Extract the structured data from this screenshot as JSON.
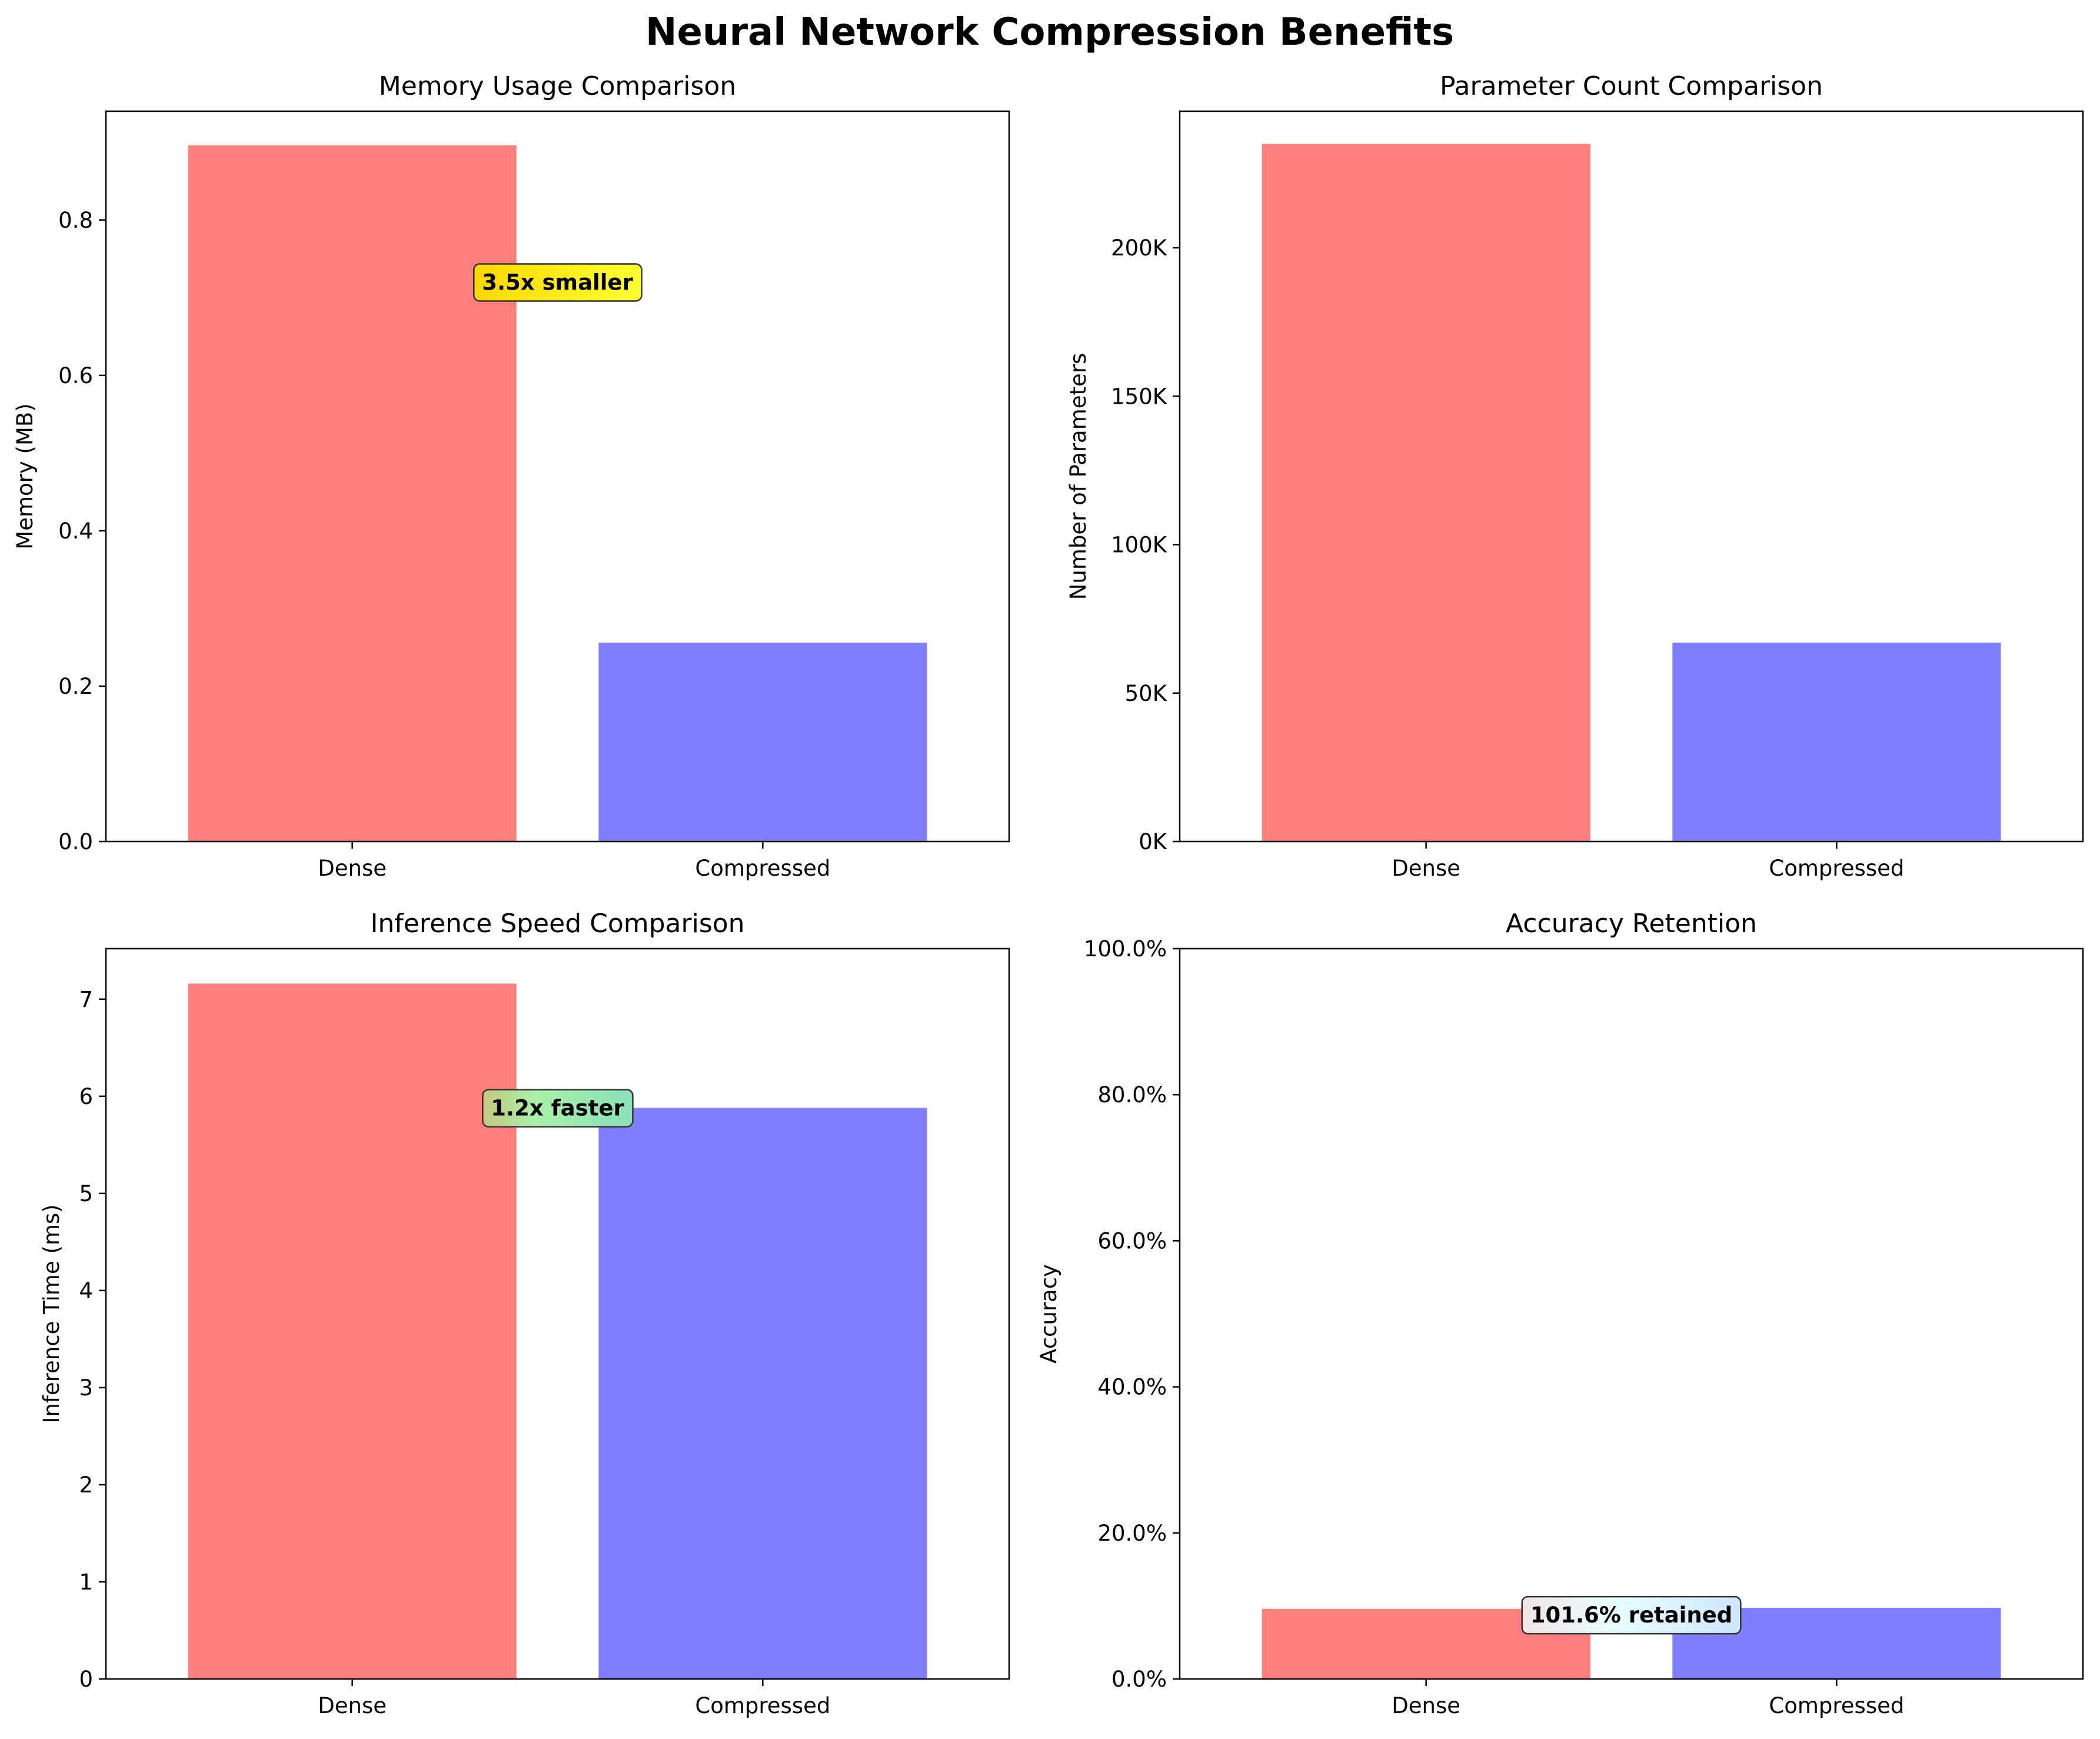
{
  "figure": {
    "title": "Neural Network Compression Benefits",
    "bar_colors": [
      "#ff7f7f",
      "#7f7fff"
    ]
  },
  "chart_data": [
    {
      "type": "bar",
      "title": "Memory Usage Comparison",
      "xlabel": "",
      "ylabel": "Memory (MB)",
      "categories": [
        "Dense",
        "Compressed"
      ],
      "values": [
        0.896,
        0.256
      ],
      "ylim": [
        0,
        0.94
      ],
      "yticks": [
        0.0,
        0.2,
        0.4,
        0.6,
        0.8
      ],
      "ytick_labels": [
        "0.0",
        "0.2",
        "0.4",
        "0.6",
        "0.8"
      ],
      "annotation": {
        "text": "3.5x smaller",
        "x": 0.5,
        "y": 0.72,
        "color": "#ffd700"
      },
      "grid": false
    },
    {
      "type": "bar",
      "title": "Parameter Count Comparison",
      "xlabel": "",
      "ylabel": "Number of Parameters",
      "categories": [
        "Dense",
        "Compressed"
      ],
      "values": [
        235000,
        67000
      ],
      "ylim": [
        0,
        246000
      ],
      "yticks": [
        0,
        50000,
        100000,
        150000,
        200000
      ],
      "ytick_labels": [
        "0K",
        "50K",
        "100K",
        "150K",
        "200K"
      ],
      "grid": false
    },
    {
      "type": "bar",
      "title": "Inference Speed Comparison",
      "xlabel": "",
      "ylabel": "Inference Time (ms)",
      "categories": [
        "Dense",
        "Compressed"
      ],
      "values": [
        7.16,
        5.88
      ],
      "ylim": [
        0,
        7.52
      ],
      "yticks": [
        0,
        1,
        2,
        3,
        4,
        5,
        6,
        7
      ],
      "ytick_labels": [
        "0",
        "1",
        "2",
        "3",
        "4",
        "5",
        "6",
        "7"
      ],
      "annotation": {
        "text": "1.2x faster",
        "x": 0.5,
        "y": 5.88,
        "color": "#90ee90"
      },
      "grid": false
    },
    {
      "type": "bar",
      "title": "Accuracy Retention",
      "xlabel": "",
      "ylabel": "Accuracy",
      "categories": [
        "Dense",
        "Compressed"
      ],
      "values": [
        0.096,
        0.0975
      ],
      "ylim": [
        0,
        1.0
      ],
      "yticks": [
        0,
        0.2,
        0.4,
        0.6,
        0.8,
        1.0
      ],
      "ytick_labels": [
        "0.0%",
        "20.0%",
        "40.0%",
        "60.0%",
        "80.0%",
        "100.0%"
      ],
      "annotation": {
        "text": "101.6% retained",
        "x": 0.5,
        "y": 0.0877,
        "color": "#e0ffff"
      },
      "grid": false
    }
  ]
}
